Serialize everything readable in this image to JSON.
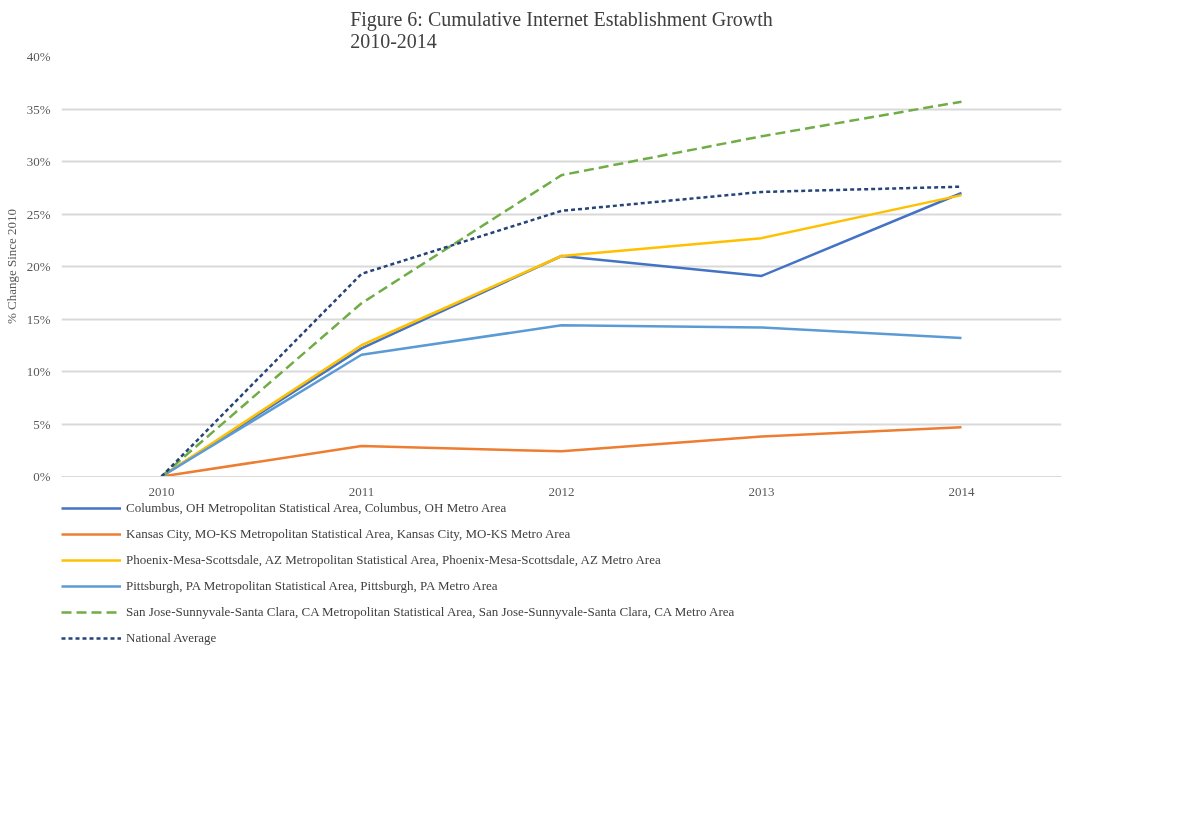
{
  "chart_data": {
    "type": "line",
    "title": "Figure 6: Cumulative Internet Establishment Growth\n2010-2014",
    "ylabel": "% Change Since 2010",
    "categories": [
      "2010",
      "2011",
      "2012",
      "2013",
      "2014"
    ],
    "ylim": [
      0,
      40
    ],
    "yticks": [
      {
        "value": 0,
        "label": "0%"
      },
      {
        "value": 5,
        "label": "5%"
      },
      {
        "value": 10,
        "label": "10%"
      },
      {
        "value": 15,
        "label": "15%"
      },
      {
        "value": 20,
        "label": "20%"
      },
      {
        "value": 25,
        "label": "25%"
      },
      {
        "value": 30,
        "label": "30%"
      },
      {
        "value": 35,
        "label": "35%"
      },
      {
        "value": 40,
        "label": "40%"
      }
    ],
    "grid": "y",
    "legend": "bottom",
    "marker": "none",
    "series": [
      {
        "name": "Columbus, OH Metropolitan Statistical Area, Columbus, OH Metro Area",
        "color": "#4472c4",
        "line_style": "solid",
        "values": [
          0,
          12.2,
          21.0,
          19.1,
          27.0
        ]
      },
      {
        "name": "Kansas City, MO-KS Metropolitan Statistical Area, Kansas City, MO-KS Metro Area",
        "color": "#ed7d31",
        "line_style": "solid",
        "values": [
          0,
          2.9,
          2.4,
          3.8,
          4.7
        ]
      },
      {
        "name": "Phoenix-Mesa-Scottsdale, AZ Metropolitan Statistical Area, Phoenix-Mesa-Scottsdale, AZ Metro Area",
        "color": "#ffc000",
        "line_style": "solid",
        "values": [
          0,
          12.5,
          21.0,
          22.7,
          26.8
        ]
      },
      {
        "name": "Pittsburgh, PA Metropolitan Statistical Area, Pittsburgh, PA Metro Area",
        "color": "#5b9bd5",
        "line_style": "solid",
        "values": [
          0,
          11.6,
          14.4,
          14.2,
          13.2
        ]
      },
      {
        "name": "San Jose-Sunnyvale-Santa Clara, CA Metropolitan Statistical Area, San Jose-Sunnyvale-Santa Clara, CA Metro Area",
        "color": "#70ad47",
        "line_style": "dashed",
        "values": [
          0,
          16.5,
          28.7,
          32.4,
          35.7
        ]
      },
      {
        "name": "National Average",
        "color": "#264478",
        "line_style": "dotted",
        "values": [
          0,
          19.3,
          25.3,
          27.1,
          27.6
        ]
      }
    ]
  }
}
